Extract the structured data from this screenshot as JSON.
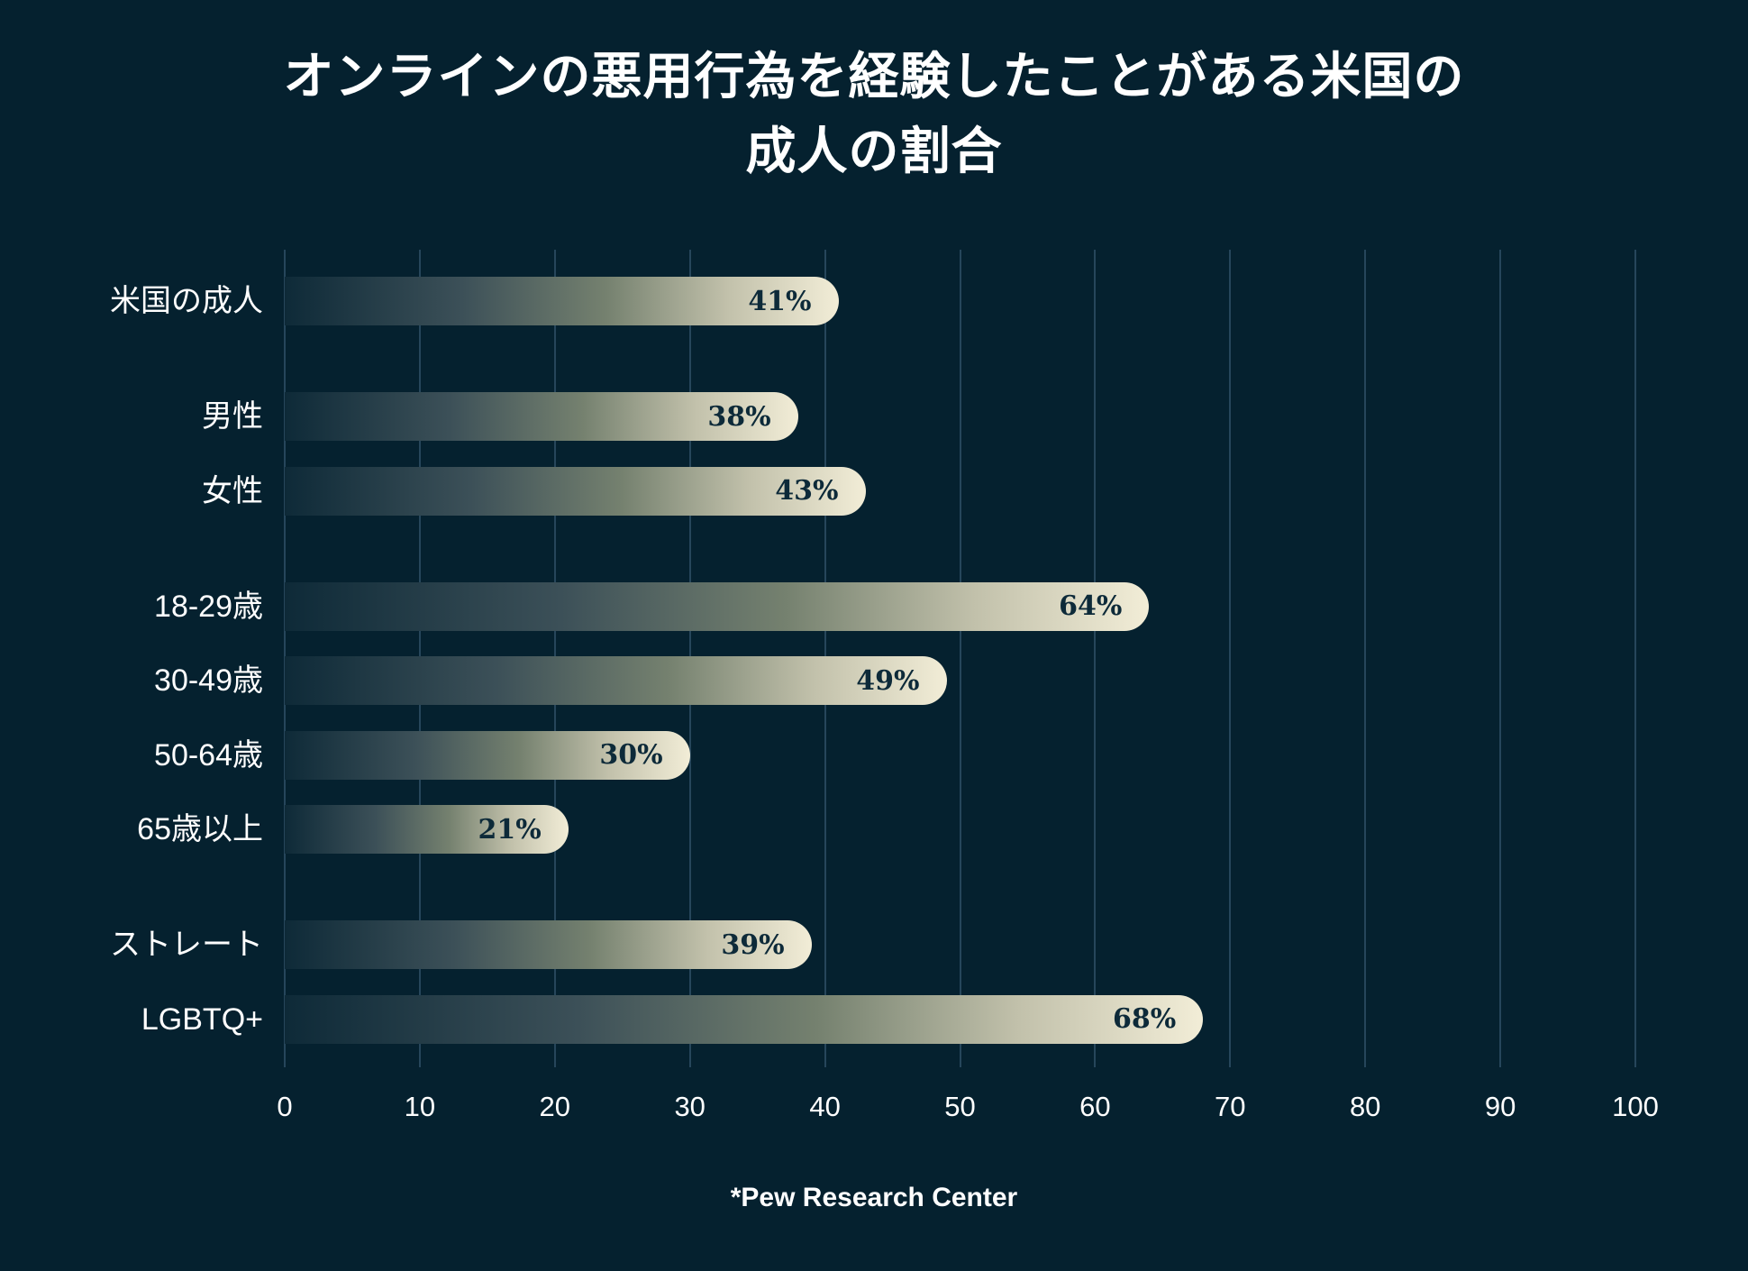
{
  "title_lines": [
    "オンラインの悪用行為を経験したことがある米国の",
    "成人の割合"
  ],
  "footer": "*Pew Research Center",
  "colors": {
    "background": "#05212f",
    "gridline": "#26465b",
    "bar_gradient_start": "#0e2a38",
    "bar_gradient_end": "#f2edd7",
    "value_label_text": "#0d2a39",
    "category_label_text": "#ffffff",
    "title_text": "#ffffff"
  },
  "chart_data": {
    "type": "bar",
    "orientation": "horizontal",
    "title": "オンラインの悪用行為を経験したことがある米国の成人の割合",
    "source": "*Pew Research Center",
    "categories": [
      "米国の成人",
      "男性",
      "女性",
      "18-29歳",
      "30-49歳",
      "50-64歳",
      "65歳以上",
      "ストレート",
      "LGBTQ+"
    ],
    "values": [
      41,
      38,
      43,
      64,
      49,
      30,
      21,
      39,
      68
    ],
    "value_labels": [
      "41%",
      "38%",
      "43%",
      "64%",
      "49%",
      "30%",
      "21%",
      "39%",
      "68%"
    ],
    "groups": [
      0,
      1,
      1,
      2,
      2,
      2,
      2,
      3,
      3
    ],
    "xlabel": "",
    "ylabel": "",
    "xlim": [
      0,
      100
    ],
    "x_ticks": [
      0,
      10,
      20,
      30,
      40,
      50,
      60,
      70,
      80,
      90,
      100
    ],
    "grid": "vertical",
    "legend": "none"
  }
}
